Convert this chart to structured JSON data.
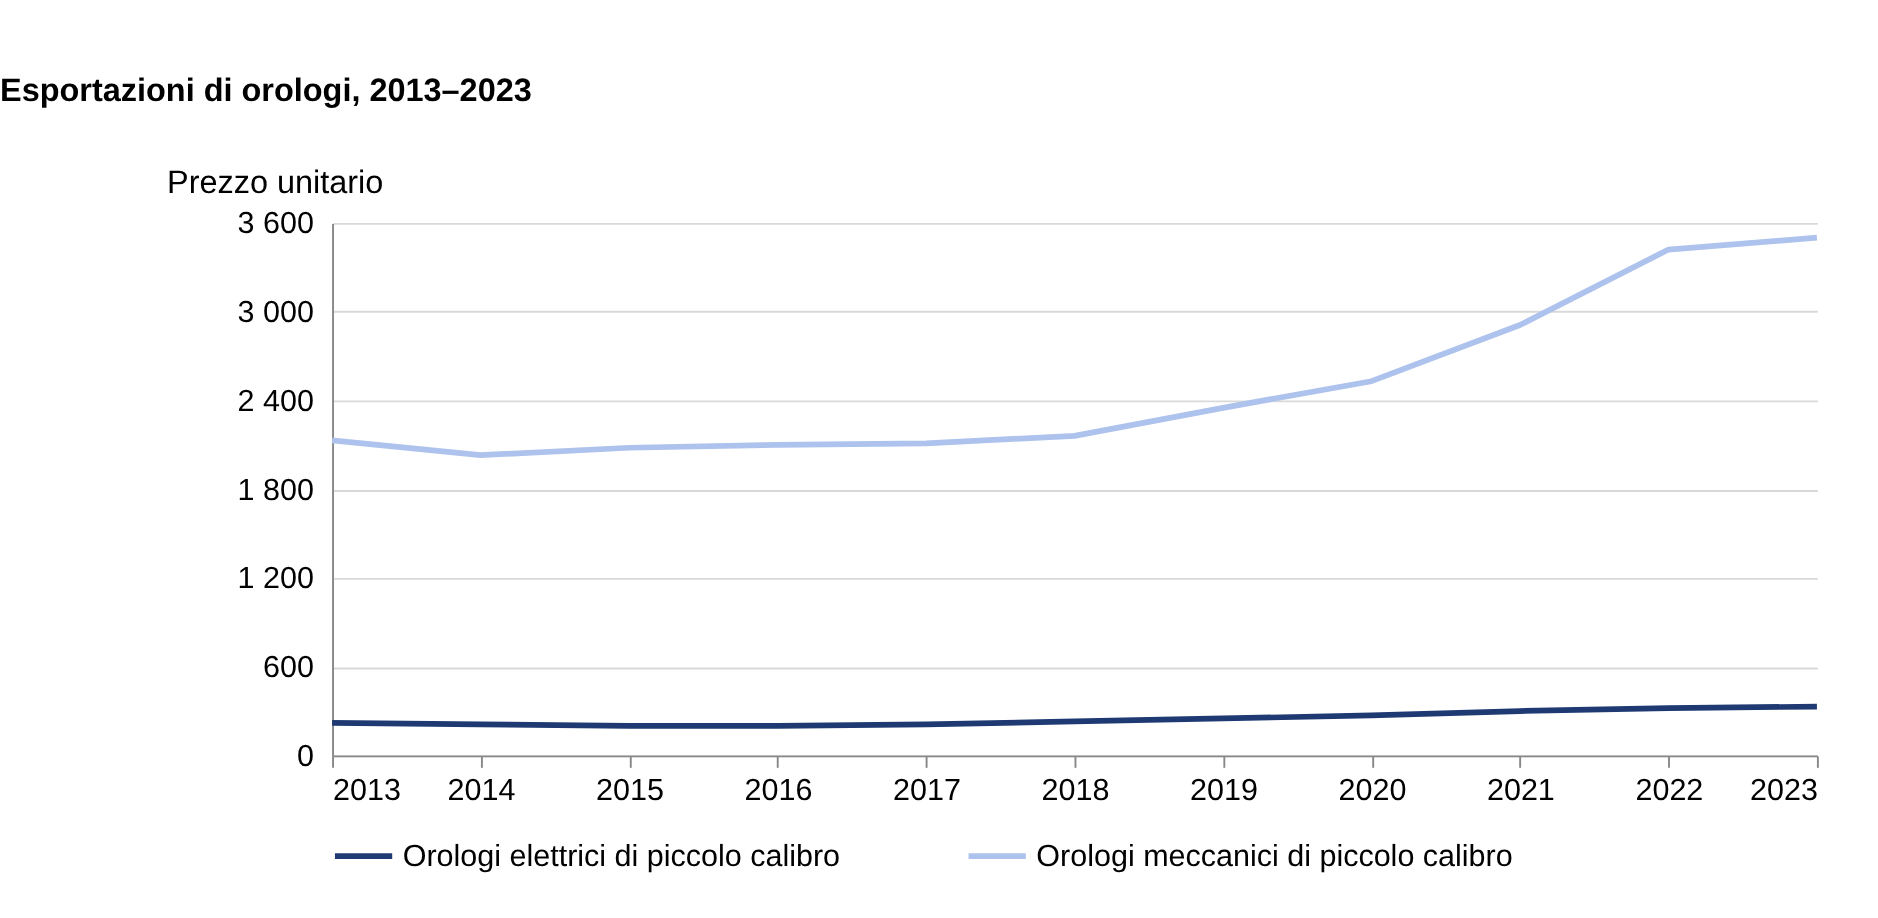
{
  "chart_data": {
    "type": "line",
    "title": "Esportazioni di orologi, 2013–2023",
    "ylabel": "Prezzo unitario",
    "x": [
      2013,
      2014,
      2015,
      2016,
      2017,
      2018,
      2019,
      2020,
      2021,
      2022,
      2023
    ],
    "series": [
      {
        "name": "Orologi elettrici di piccolo calibro",
        "color": "#1f3a73",
        "values": [
          220,
          210,
          200,
          200,
          210,
          230,
          250,
          270,
          300,
          320,
          330
        ]
      },
      {
        "name": "Orologi meccanici di piccolo calibro",
        "color": "#adc2ec",
        "values": [
          2130,
          2030,
          2080,
          2100,
          2110,
          2160,
          2350,
          2530,
          2910,
          3420,
          3500
        ]
      }
    ],
    "xlim": [
      2013,
      2023
    ],
    "xticks": [
      2013,
      2014,
      2015,
      2016,
      2017,
      2018,
      2019,
      2020,
      2021,
      2022,
      2023
    ],
    "ylim": [
      0,
      3600
    ],
    "yticks": [
      0,
      600,
      {
        "value": 1200,
        "label": "1 200"
      },
      {
        "value": 1800,
        "label": "1 800"
      },
      {
        "value": 2400,
        "label": "2 400"
      },
      {
        "value": 3000,
        "label": "3 000"
      },
      {
        "value": 3600,
        "label": "3 600"
      }
    ],
    "grid": "y",
    "legend": "bottom",
    "marker": "none",
    "line_style": "solid"
  }
}
